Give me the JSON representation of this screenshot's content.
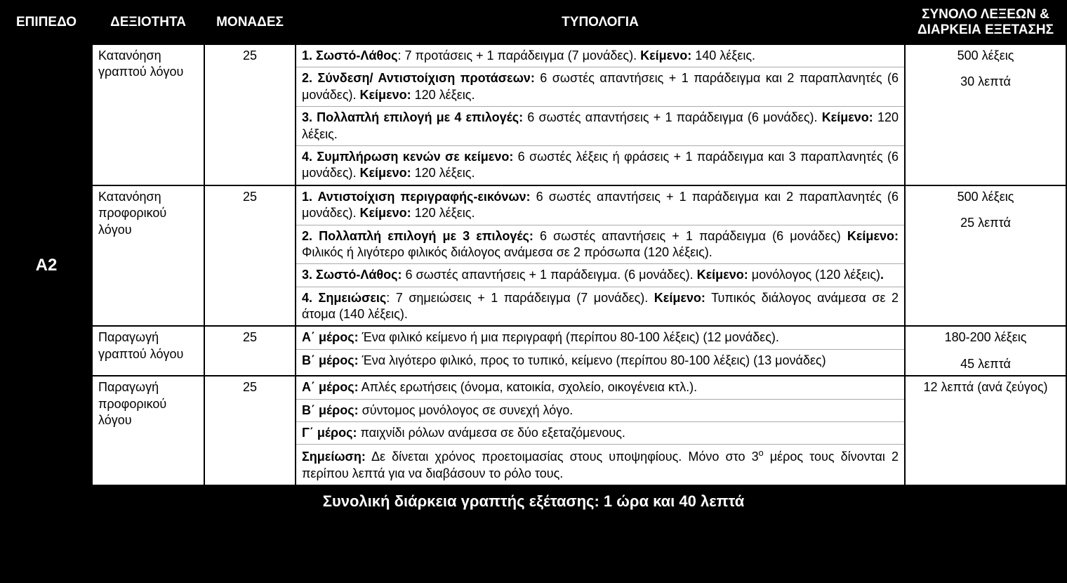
{
  "headers": {
    "level": "ΕΠΙΠΕΔΟ",
    "skill": "ΔΕΞΙΟΤΗΤΑ",
    "units": "ΜΟΝΑΔΕΣ",
    "typology": "ΤΥΠΟΛΟΓΙΑ",
    "totals": "ΣΥΝΟΛΟ ΛΕΞΕΩΝ & ΔΙΑΡΚΕΙΑ ΕΞΕΤΑΣΗΣ"
  },
  "level": "Α2",
  "rows": [
    {
      "skill": "Κατανόηση γραπτού λόγου",
      "units": "25",
      "typology": [
        {
          "b1": "1. Σωστό-Λάθος",
          "t1": ": 7 προτάσεις + 1 παράδειγμα (7 μονάδες). ",
          "b2": "Κείμενο:",
          "t2": " 140 λέξεις."
        },
        {
          "b1": "2. Σύνδεση/ Αντιστοίχιση προτάσεων:",
          "t1": " 6 σωστές απαντήσεις + 1 παράδειγμα και 2 παραπλανητές (6 μονάδες). ",
          "b2": "Κείμενο:",
          "t2": " 120 λέξεις."
        },
        {
          "b1": "3. Πολλαπλή επιλογή με 4 επιλογές:",
          "t1": " 6 σωστές απαντήσεις + 1 παράδειγμα (6 μονάδες). ",
          "b2": "Κείμενο:",
          "t2": " 120 λέξεις."
        },
        {
          "b1": "4. Συμπλήρωση κενών σε κείμενο:",
          "t1": " 6 σωστές λέξεις ή φράσεις  +  1 παράδειγμα και 3 παραπλανητές (6 μονάδες). ",
          "b2": "Κείμενο:",
          "t2": " 120 λέξεις."
        }
      ],
      "totals": [
        "500 λέξεις",
        "30 λεπτά"
      ]
    },
    {
      "skill": "Κατανόηση προφορικού λόγου",
      "units": "25",
      "typology": [
        {
          "b1": "1. Αντιστοίχιση περιγραφής-εικόνων:",
          "t1": " 6 σωστές απαντήσεις + 1 παράδειγμα και 2 παραπλανητές (6 μονάδες). ",
          "b2": "Κείμενο:",
          "t2": " 120 λέξεις."
        },
        {
          "b1": "2. Πολλαπλή επιλογή με 3 επιλογές:",
          "t1": " 6 σωστές απαντήσεις + 1 παράδειγμα (6 μονάδες) ",
          "b2": "Κείμενο:",
          "t2": "  Φιλικός ή λιγότερο φιλικός διάλογος ανάμεσα σε 2 πρόσωπα (120 λέξεις)."
        },
        {
          "b1": "3. Σωστό-Λάθος:",
          "t1": "  6 σωστές απαντήσεις + 1 παράδειγμα.  (6 μονάδες). ",
          "b2": "Κείμενο:",
          "t2": " μονόλογος (120 λέξεις)",
          "b3": "."
        },
        {
          "b1": "4. Σημειώσεις",
          "t1": ": 7 σημειώσεις + 1 παράδειγμα (7 μονάδες). ",
          "b2": "Κείμενο:",
          "t2": " Τυπικός διάλογος ανάμεσα σε 2 άτομα (140 λέξεις)."
        }
      ],
      "totals": [
        "500 λέξεις",
        "25 λεπτά"
      ]
    },
    {
      "skill": "Παραγωγή γραπτού λόγου",
      "units": "25",
      "typology": [
        {
          "b1": "Α΄ μέρος:",
          "t1": " Ένα φιλικό κείμενο ή μια περιγραφή (περίπου 80-100 λέξεις) (12 μονάδες)."
        },
        {
          "b1": "Β΄ μέρος:",
          "t1": " Ένα λιγότερο φιλικό, προς το τυπικό, κείμενο (περίπου 80-100 λέξεις) (13 μονάδες)"
        }
      ],
      "totals": [
        "180-200 λέξεις",
        "45 λεπτά"
      ]
    },
    {
      "skill": "Παραγωγή προφορικού λόγου",
      "units": "25",
      "typology": [
        {
          "b1": "Α΄ μέρος:",
          "t1": " Απλές ερωτήσεις (όνομα, κατοικία, σχολείο, οικογένεια κτλ.)."
        },
        {
          "b1": "Β΄ μέρος:",
          "t1": " σύντομος μονόλογος σε συνεχή λόγο."
        },
        {
          "b1": "Γ΄ μέρος:",
          "t1": " παιχνίδι ρόλων ανάμεσα σε δύο εξεταζόμενους."
        },
        {
          "b1": "Σημείωση:",
          "t1": " Δε δίνεται χρόνος προετοιμασίας στους υποψηφίους. Μόνο στο 3",
          "sup": "ο",
          "t1b": " μέρος τους δίνονται 2 περίπου λεπτά για να διαβάσουν το ρόλο τους."
        }
      ],
      "totals": [
        "12 λεπτά (ανά ζεύγος)"
      ]
    }
  ],
  "footer": "Συνολική διάρκεια γραπτής εξέτασης: 1 ώρα και 40 λεπτά"
}
